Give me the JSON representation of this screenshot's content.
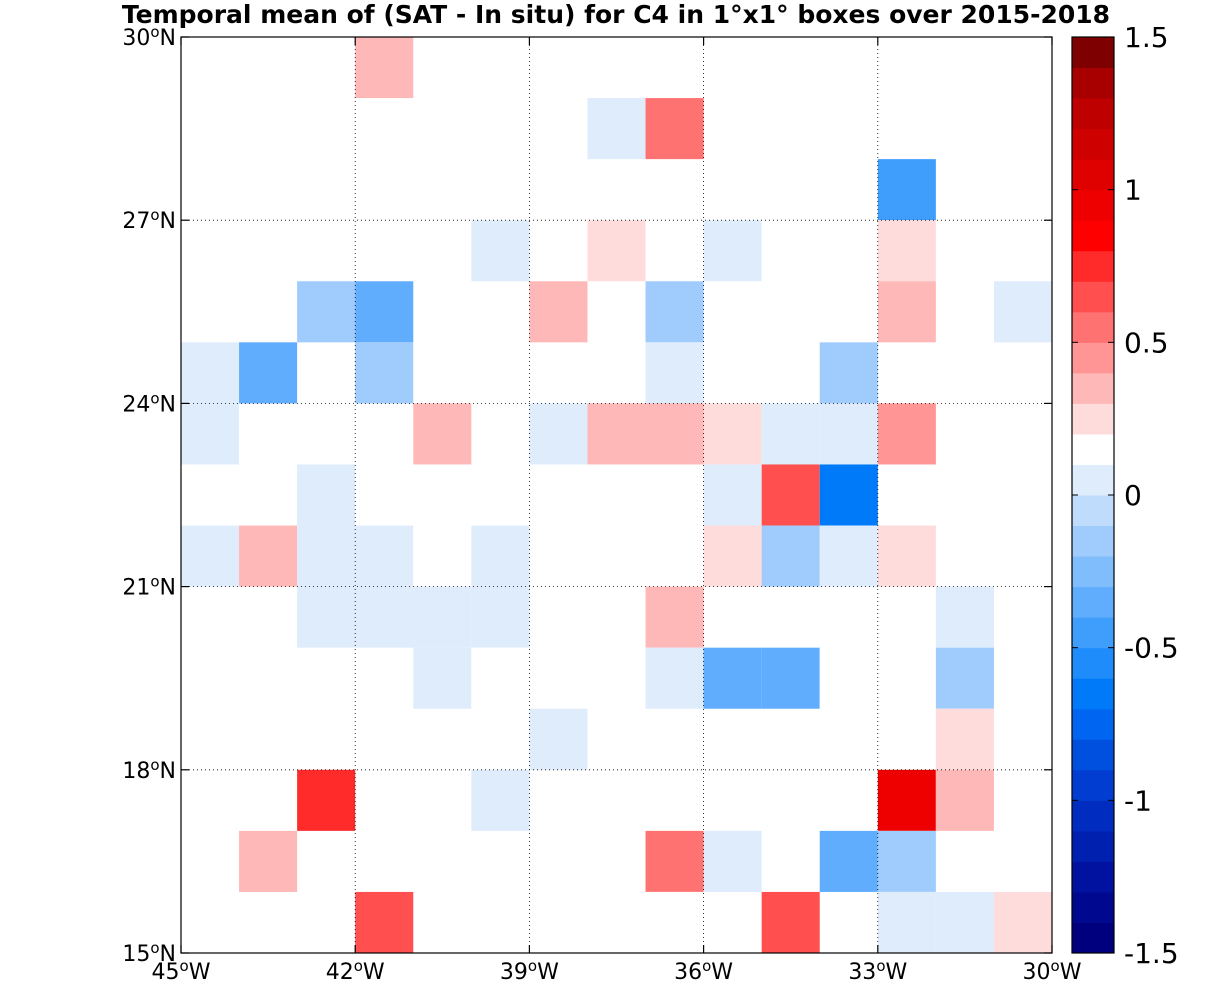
{
  "title": "Temporal mean of (SAT - In situ) for C4 in 1°x1° boxes over 2015-2018",
  "chart_data": {
    "type": "heatmap",
    "title": "Temporal mean of (SAT - In situ) for C4 in 1°x1° boxes over 2015-2018",
    "xlim": [
      -45,
      -30
    ],
    "ylim": [
      15,
      30
    ],
    "grid": true,
    "x_ticks": [
      {
        "value": -45,
        "label": "45°W"
      },
      {
        "value": -42,
        "label": "42°W"
      },
      {
        "value": -39,
        "label": "39°W"
      },
      {
        "value": -36,
        "label": "36°W"
      },
      {
        "value": -33,
        "label": "33°W"
      },
      {
        "value": -30,
        "label": "30°W"
      }
    ],
    "y_ticks": [
      {
        "value": 15,
        "label": "15°N"
      },
      {
        "value": 18,
        "label": "18°N"
      },
      {
        "value": 21,
        "label": "21°N"
      },
      {
        "value": 24,
        "label": "24°N"
      },
      {
        "value": 27,
        "label": "27°N"
      },
      {
        "value": 30,
        "label": "30°N"
      }
    ],
    "colorbar": {
      "min": -1.5,
      "max": 1.5,
      "levels": 30,
      "ticks": [
        {
          "value": 1.5,
          "label": "1.5"
        },
        {
          "value": 1,
          "label": "1"
        },
        {
          "value": 0.5,
          "label": "0.5"
        },
        {
          "value": 0,
          "label": "0"
        },
        {
          "value": -0.5,
          "label": "-0.5"
        },
        {
          "value": -1,
          "label": "-1"
        },
        {
          "value": -1.5,
          "label": "-1.5"
        }
      ],
      "colors": [
        "#00007f",
        "#00088f",
        "#00129f",
        "#0020af",
        "#002dc0",
        "#003dd0",
        "#0050e0",
        "#0065f0",
        "#007af8",
        "#1f8cfc",
        "#3f9dfc",
        "#5fadfc",
        "#7fbdfc",
        "#9fccfc",
        "#bfdcfc",
        "#dfecfc",
        "#ffffff",
        "#ffdcdc",
        "#ffb8b8",
        "#ff9595",
        "#ff7272",
        "#ff4f4f",
        "#ff2b2b",
        "#ff0000",
        "#ef0000",
        "#df0000",
        "#cf0000",
        "#bf0000",
        "#a80000",
        "#7f0000"
      ]
    },
    "cells": [
      {
        "lon": -45,
        "lat": 29,
        "value": 0.15
      },
      {
        "lon": -43,
        "lat": 29,
        "value": 0.15
      },
      {
        "lon": -42,
        "lat": 29,
        "value": 0.35
      },
      {
        "lon": -38,
        "lat": 28,
        "value": 0.05
      },
      {
        "lon": -37,
        "lat": 28,
        "value": 0.55
      },
      {
        "lon": -35,
        "lat": 28,
        "value": 0.15
      },
      {
        "lon": -33,
        "lat": 28,
        "value": 0.15
      },
      {
        "lon": -44,
        "lat": 27,
        "value": 0.15
      },
      {
        "lon": -33,
        "lat": 27,
        "value": -0.45
      },
      {
        "lon": -40,
        "lat": 26,
        "value": 0.05
      },
      {
        "lon": -38,
        "lat": 26,
        "value": 0.25
      },
      {
        "lon": -36,
        "lat": 26,
        "value": 0.05
      },
      {
        "lon": -33,
        "lat": 26,
        "value": 0.25
      },
      {
        "lon": -44,
        "lat": 25,
        "value": 0.15
      },
      {
        "lon": -43,
        "lat": 25,
        "value": -0.2
      },
      {
        "lon": -42,
        "lat": 25,
        "value": -0.3
      },
      {
        "lon": -39,
        "lat": 25,
        "value": 0.35
      },
      {
        "lon": -37,
        "lat": 25,
        "value": -0.1
      },
      {
        "lon": -36,
        "lat": 25,
        "value": 0.15
      },
      {
        "lon": -34,
        "lat": 25,
        "value": 0.15
      },
      {
        "lon": -33,
        "lat": 25,
        "value": 0.35
      },
      {
        "lon": -31,
        "lat": 25,
        "value": 0.05
      },
      {
        "lon": -45,
        "lat": 24,
        "value": 0.05
      },
      {
        "lon": -44,
        "lat": 24,
        "value": -0.4
      },
      {
        "lon": -42,
        "lat": 24,
        "value": -0.2
      },
      {
        "lon": -37,
        "lat": 24,
        "value": 0.05
      },
      {
        "lon": -36,
        "lat": 24,
        "value": 0.15
      },
      {
        "lon": -34,
        "lat": 24,
        "value": -0.1
      },
      {
        "lon": -45,
        "lat": 23,
        "value": 0.05
      },
      {
        "lon": -41,
        "lat": 23,
        "value": 0.35
      },
      {
        "lon": -39,
        "lat": 23,
        "value": 0.05
      },
      {
        "lon": -38,
        "lat": 23,
        "value": 0.35
      },
      {
        "lon": -37,
        "lat": 23,
        "value": 0.35
      },
      {
        "lon": -36,
        "lat": 23,
        "value": 0.25
      },
      {
        "lon": -35,
        "lat": 23,
        "value": 0.05
      },
      {
        "lon": -34,
        "lat": 23,
        "value": 0.05
      },
      {
        "lon": -33,
        "lat": 23,
        "value": 0.45
      },
      {
        "lon": -43,
        "lat": 22,
        "value": 0.05
      },
      {
        "lon": -42,
        "lat": 22,
        "value": 0.15
      },
      {
        "lon": -41,
        "lat": 22,
        "value": 0.15
      },
      {
        "lon": -38,
        "lat": 22,
        "value": 0.15
      },
      {
        "lon": -37,
        "lat": 22,
        "value": 0.15
      },
      {
        "lon": -36,
        "lat": 22,
        "value": 0.05
      },
      {
        "lon": -35,
        "lat": 22,
        "value": 0.65
      },
      {
        "lon": -34,
        "lat": 22,
        "value": -0.65
      },
      {
        "lon": -32,
        "lat": 22,
        "value": 0.15
      },
      {
        "lon": -45,
        "lat": 21,
        "value": 0.05
      },
      {
        "lon": -44,
        "lat": 21,
        "value": 0.3
      },
      {
        "lon": -43,
        "lat": 21,
        "value": 0.05
      },
      {
        "lon": -42,
        "lat": 21,
        "value": 0.05
      },
      {
        "lon": -41,
        "lat": 21,
        "value": 0.15
      },
      {
        "lon": -40,
        "lat": 21,
        "value": 0.05
      },
      {
        "lon": -36,
        "lat": 21,
        "value": 0.2
      },
      {
        "lon": -35,
        "lat": 21,
        "value": -0.1
      },
      {
        "lon": -34,
        "lat": 21,
        "value": 0.05
      },
      {
        "lon": -33,
        "lat": 21,
        "value": 0.2
      },
      {
        "lon": -44,
        "lat": 20,
        "value": 0.15
      },
      {
        "lon": -43,
        "lat": 20,
        "value": 0.05
      },
      {
        "lon": -42,
        "lat": 20,
        "value": 0.05
      },
      {
        "lon": -41,
        "lat": 20,
        "value": 0.05
      },
      {
        "lon": -40,
        "lat": 20,
        "value": 0.05
      },
      {
        "lon": -37,
        "lat": 20,
        "value": 0.35
      },
      {
        "lon": -32,
        "lat": 20,
        "value": 0.05
      },
      {
        "lon": -41,
        "lat": 19,
        "value": 0.05
      },
      {
        "lon": -40,
        "lat": 19,
        "value": 0.15
      },
      {
        "lon": -37,
        "lat": 19,
        "value": 0.05
      },
      {
        "lon": -36,
        "lat": 19,
        "value": -0.3
      },
      {
        "lon": -35,
        "lat": 19,
        "value": -0.3
      },
      {
        "lon": -34,
        "lat": 19,
        "value": 0.15
      },
      {
        "lon": -32,
        "lat": 19,
        "value": -0.2
      },
      {
        "lon": -39,
        "lat": 18,
        "value": 0.05
      },
      {
        "lon": -34,
        "lat": 18,
        "value": 0.15
      },
      {
        "lon": -32,
        "lat": 18,
        "value": 0.2
      },
      {
        "lon": -43,
        "lat": 17,
        "value": 0.75
      },
      {
        "lon": -40,
        "lat": 17,
        "value": 0.05
      },
      {
        "lon": -33,
        "lat": 17,
        "value": 0.95
      },
      {
        "lon": -32,
        "lat": 17,
        "value": 0.35
      },
      {
        "lon": -44,
        "lat": 16,
        "value": 0.35
      },
      {
        "lon": -37,
        "lat": 16,
        "value": 0.5
      },
      {
        "lon": -36,
        "lat": 16,
        "value": 0.05
      },
      {
        "lon": -34,
        "lat": 16,
        "value": -0.35
      },
      {
        "lon": -33,
        "lat": 16,
        "value": -0.1
      },
      {
        "lon": -43,
        "lat": 15,
        "value": 0.15
      },
      {
        "lon": -42,
        "lat": 15,
        "value": 0.65
      },
      {
        "lon": -37,
        "lat": 15,
        "value": 0.15
      },
      {
        "lon": -35,
        "lat": 15,
        "value": 0.65
      },
      {
        "lon": -33,
        "lat": 15,
        "value": 0.05
      },
      {
        "lon": -32,
        "lat": 15,
        "value": 0.05
      },
      {
        "lon": -31,
        "lat": 15,
        "value": 0.2
      }
    ]
  }
}
